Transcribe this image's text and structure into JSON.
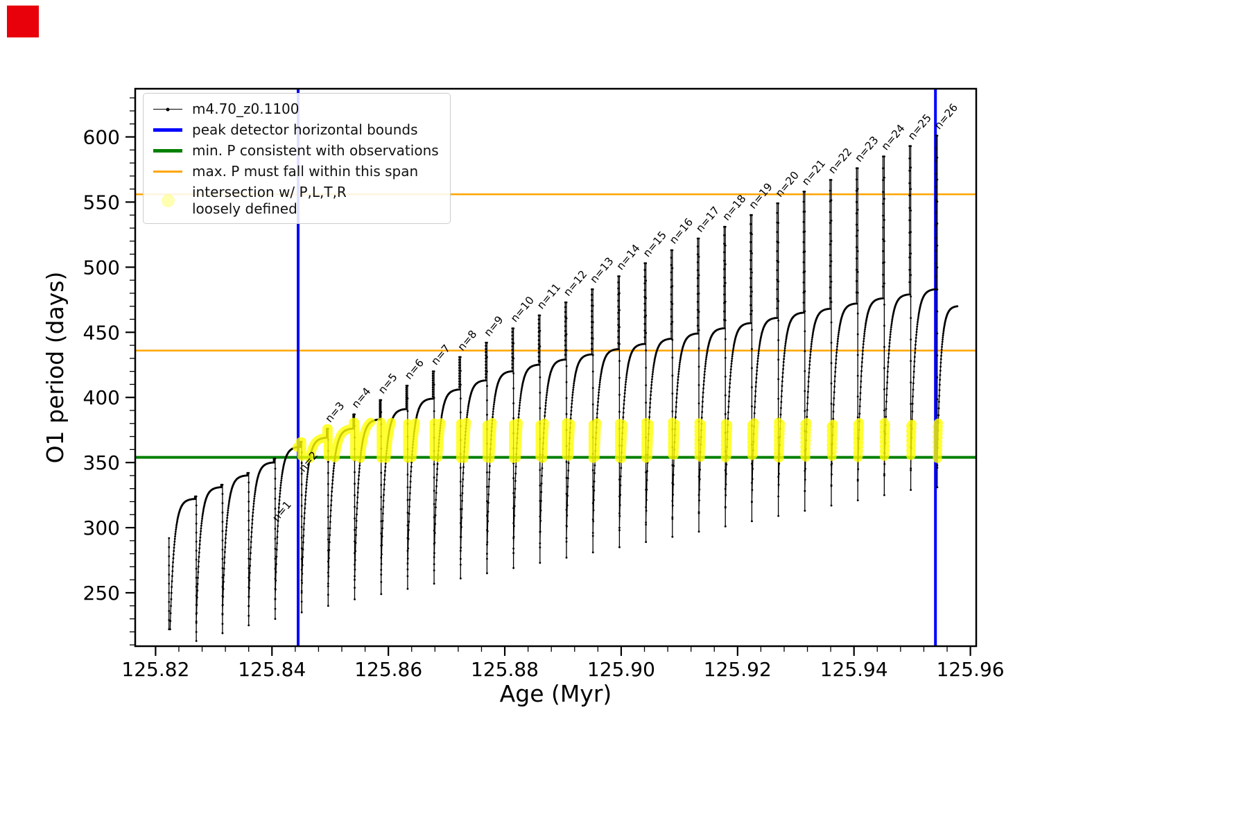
{
  "corner_marker": {
    "color": "#e8000b"
  },
  "legend": {
    "items": [
      {
        "label": "m4.70_z0.1100",
        "marker": "line-dot",
        "color": "#000000"
      },
      {
        "label": "peak detector horizontal bounds",
        "marker": "thick",
        "color": "#0000ff"
      },
      {
        "label": "min. P consistent with observations",
        "marker": "thick",
        "color": "#008000"
      },
      {
        "label": "max. P must fall within this span",
        "marker": "thin",
        "color": "#ffa500"
      },
      {
        "label": "intersection w/ P,L,T,R\nloosely defined",
        "marker": "dot",
        "color": "#ffff00"
      }
    ]
  },
  "chart_data": {
    "type": "line",
    "title": "",
    "xlabel": "Age (Myr)",
    "ylabel": "O1 period (days)",
    "xlim": [
      125.8165,
      125.961
    ],
    "ylim": [
      209,
      637
    ],
    "grid": false,
    "legend_position": "upper left",
    "xticks": {
      "values": [
        125.82,
        125.84,
        125.86,
        125.88,
        125.9,
        125.92,
        125.94,
        125.96
      ],
      "labels": [
        "125.82",
        "125.84",
        "125.86",
        "125.88",
        "125.90",
        "125.92",
        "125.94",
        "125.96"
      ],
      "minor_step": 0.004
    },
    "yticks": {
      "values": [
        250,
        300,
        350,
        400,
        450,
        500,
        550,
        600
      ],
      "labels": [
        "250",
        "300",
        "350",
        "400",
        "450",
        "500",
        "550",
        "600"
      ],
      "minor_step": 10
    },
    "peak_bounds": {
      "label": "peak detector horizontal bounds",
      "color": "#0000ff",
      "x": [
        125.8445,
        125.954
      ]
    },
    "min_p": {
      "label": "min. P consistent with observations",
      "color": "#008000",
      "y": 354
    },
    "max_span": {
      "label": "max. P must fall within this span",
      "color": "#ffa500",
      "y": [
        436,
        556
      ]
    },
    "intersections": {
      "label": "intersection w/ P,L,T,R\nloosely defined",
      "color": "#ffff00",
      "y_band": [
        353,
        381
      ],
      "x_range": [
        125.8443,
        125.956
      ]
    },
    "series": {
      "name": "m4.70_z0.1100",
      "color": "#000000",
      "lead_in": {
        "x": 125.8223,
        "top": 292,
        "bottom": 222
      },
      "cycles": [
        {
          "x0": 125.8225,
          "x1": 125.827,
          "min": 222,
          "peak": 322,
          "spike": 324,
          "label": null
        },
        {
          "x0": 125.827,
          "x1": 125.8315,
          "min": 228,
          "peak": 331,
          "spike": 333,
          "label": null
        },
        {
          "x0": 125.8315,
          "x1": 125.836,
          "min": 234,
          "peak": 340,
          "spike": 342,
          "label": null
        },
        {
          "x0": 125.836,
          "x1": 125.84055,
          "min": 240,
          "peak": 350,
          "spike": 353,
          "label": "n=1",
          "label_y": 300
        },
        {
          "x0": 125.84055,
          "x1": 125.8451,
          "min": 245,
          "peak": 362,
          "spike": 366,
          "label": "n=2",
          "label_y": 338
        },
        {
          "x0": 125.8451,
          "x1": 125.84965,
          "min": 250,
          "peak": 369,
          "spike": 376,
          "label": "n=3"
        },
        {
          "x0": 125.84965,
          "x1": 125.8542,
          "min": 255,
          "peak": 376,
          "spike": 387,
          "label": "n=4"
        },
        {
          "x0": 125.8542,
          "x1": 125.85875,
          "min": 260,
          "peak": 383,
          "spike": 398,
          "label": "n=5"
        },
        {
          "x0": 125.85875,
          "x1": 125.8633,
          "min": 264,
          "peak": 391,
          "spike": 409,
          "label": "n=6"
        },
        {
          "x0": 125.8633,
          "x1": 125.86785,
          "min": 268,
          "peak": 399,
          "spike": 420,
          "label": "n=7"
        },
        {
          "x0": 125.86785,
          "x1": 125.8724,
          "min": 272,
          "peak": 406,
          "spike": 431,
          "label": "n=8"
        },
        {
          "x0": 125.8724,
          "x1": 125.87695,
          "min": 276,
          "peak": 413,
          "spike": 442,
          "label": "n=9"
        },
        {
          "x0": 125.87695,
          "x1": 125.8815,
          "min": 280,
          "peak": 420,
          "spike": 453,
          "label": "n=10"
        },
        {
          "x0": 125.8815,
          "x1": 125.88605,
          "min": 284,
          "peak": 425,
          "spike": 463,
          "label": "n=11"
        },
        {
          "x0": 125.88605,
          "x1": 125.8906,
          "min": 288,
          "peak": 429,
          "spike": 473,
          "label": "n=12"
        },
        {
          "x0": 125.8906,
          "x1": 125.89515,
          "min": 292,
          "peak": 433,
          "spike": 483,
          "label": "n=13"
        },
        {
          "x0": 125.89515,
          "x1": 125.8997,
          "min": 296,
          "peak": 437,
          "spike": 493,
          "label": "n=14"
        },
        {
          "x0": 125.8997,
          "x1": 125.90425,
          "min": 300,
          "peak": 441,
          "spike": 503,
          "label": "n=15"
        },
        {
          "x0": 125.90425,
          "x1": 125.9088,
          "min": 304,
          "peak": 445,
          "spike": 513,
          "label": "n=16"
        },
        {
          "x0": 125.9088,
          "x1": 125.91335,
          "min": 308,
          "peak": 449,
          "spike": 522,
          "label": "n=17"
        },
        {
          "x0": 125.91335,
          "x1": 125.9179,
          "min": 312,
          "peak": 453,
          "spike": 531,
          "label": "n=18"
        },
        {
          "x0": 125.9179,
          "x1": 125.92245,
          "min": 316,
          "peak": 457,
          "spike": 540,
          "label": "n=19"
        },
        {
          "x0": 125.92245,
          "x1": 125.927,
          "min": 320,
          "peak": 461,
          "spike": 549,
          "label": "n=20"
        },
        {
          "x0": 125.927,
          "x1": 125.93155,
          "min": 324,
          "peak": 465,
          "spike": 558,
          "label": "n=21"
        },
        {
          "x0": 125.93155,
          "x1": 125.9361,
          "min": 328,
          "peak": 468,
          "spike": 567,
          "label": "n=22"
        },
        {
          "x0": 125.9361,
          "x1": 125.94065,
          "min": 332,
          "peak": 472,
          "spike": 576,
          "label": "n=23"
        },
        {
          "x0": 125.94065,
          "x1": 125.9452,
          "min": 336,
          "peak": 476,
          "spike": 585,
          "label": "n=24"
        },
        {
          "x0": 125.9452,
          "x1": 125.94975,
          "min": 340,
          "peak": 479,
          "spike": 593,
          "label": "n=25"
        },
        {
          "x0": 125.94975,
          "x1": 125.9543,
          "min": 344,
          "peak": 483,
          "spike": 601,
          "label": "n=26"
        },
        {
          "x0": 125.9543,
          "x1": 125.9582,
          "min": 346,
          "peak": 470,
          "spike": null,
          "label": null,
          "partial": true
        }
      ]
    }
  }
}
